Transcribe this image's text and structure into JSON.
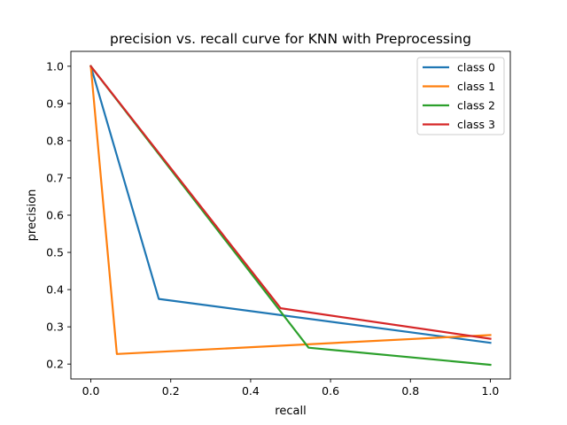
{
  "chart_data": {
    "type": "line",
    "title": "precision vs. recall curve for KNN with Preprocessing",
    "xlabel": "recall",
    "ylabel": "precision",
    "xlim": [
      -0.05,
      1.05
    ],
    "ylim": [
      0.16,
      1.04
    ],
    "xticks": [
      0.0,
      0.2,
      0.4,
      0.6,
      0.8,
      1.0
    ],
    "xtick_labels": [
      "0.0",
      "0.2",
      "0.4",
      "0.6",
      "0.8",
      "1.0"
    ],
    "yticks": [
      0.2,
      0.3,
      0.4,
      0.5,
      0.6,
      0.7,
      0.8,
      0.9,
      1.0
    ],
    "ytick_labels": [
      "0.2",
      "0.3",
      "0.4",
      "0.5",
      "0.6",
      "0.7",
      "0.8",
      "0.9",
      "1.0"
    ],
    "grid": false,
    "legend_position": "top-right",
    "series": [
      {
        "name": "class 0",
        "color": "#1f77b4",
        "x": [
          0.0,
          0.17,
          1.0
        ],
        "y": [
          1.0,
          0.375,
          0.257
        ]
      },
      {
        "name": "class 1",
        "color": "#ff7f0e",
        "x": [
          0.0,
          0.065,
          1.0
        ],
        "y": [
          1.0,
          0.227,
          0.278
        ]
      },
      {
        "name": "class 2",
        "color": "#2ca02c",
        "x": [
          0.0,
          0.545,
          1.0
        ],
        "y": [
          1.0,
          0.244,
          0.198
        ]
      },
      {
        "name": "class 3",
        "color": "#d62728",
        "x": [
          0.0,
          0.475,
          1.0
        ],
        "y": [
          1.0,
          0.35,
          0.268
        ]
      }
    ]
  }
}
